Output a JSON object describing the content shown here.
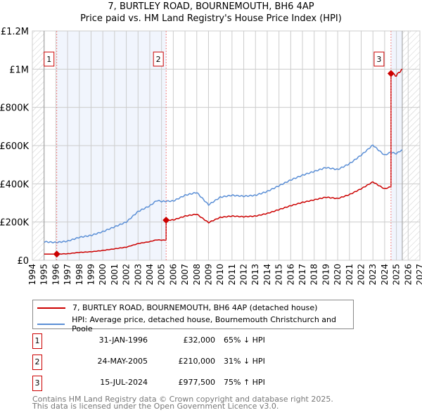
{
  "chart_data": {
    "type": "line",
    "title": "7, BURTLEY ROAD, BOURNEMOUTH, BH6 4AP",
    "subtitle": "Price paid vs. HM Land Registry's House Price Index (HPI)",
    "xlim": [
      1994,
      2027
    ],
    "ylim": [
      0,
      1200000
    ],
    "yticks": [
      {
        "v": 0,
        "label": "£0"
      },
      {
        "v": 200000,
        "label": "£200K"
      },
      {
        "v": 400000,
        "label": "£400K"
      },
      {
        "v": 600000,
        "label": "£600K"
      },
      {
        "v": 800000,
        "label": "£800K"
      },
      {
        "v": 1000000,
        "label": "£1M"
      },
      {
        "v": 1200000,
        "label": "£1.2M"
      }
    ],
    "xticks": [
      1994,
      1995,
      1996,
      1997,
      1998,
      1999,
      2000,
      2001,
      2002,
      2003,
      2004,
      2005,
      2006,
      2007,
      2008,
      2009,
      2010,
      2011,
      2012,
      2013,
      2014,
      2015,
      2016,
      2017,
      2018,
      2019,
      2020,
      2021,
      2022,
      2023,
      2024,
      2025,
      2026,
      2027
    ],
    "data_range": [
      1995,
      2025.5
    ],
    "hpi_series": {
      "name": "HPI: Average price, detached house, Bournemouth Christchurch and Poole",
      "color": "#5b8fd6",
      "x": [
        1995,
        1996,
        1997,
        1998,
        1999,
        2000,
        2001,
        2002,
        2003,
        2004,
        2004.6,
        2005,
        2006,
        2007,
        2008,
        2009,
        2010,
        2011,
        2012,
        2013,
        2014,
        2015,
        2016,
        2017,
        2018,
        2019,
        2020,
        2021,
        2022,
        2023,
        2023.5,
        2024,
        2024.5,
        2025,
        2025.4
      ],
      "y": [
        97000,
        93000,
        100000,
        120000,
        130000,
        150000,
        175000,
        200000,
        255000,
        285000,
        313000,
        308000,
        310000,
        340000,
        355000,
        290000,
        330000,
        340000,
        335000,
        340000,
        360000,
        390000,
        420000,
        445000,
        465000,
        485000,
        475000,
        505000,
        550000,
        603000,
        575000,
        550000,
        565000,
        558000,
        575000
      ]
    },
    "price_series": {
      "name": "7, BURTLEY ROAD, BOURNEMOUTH, BH6 4AP (detached house)",
      "color": "#cc0000"
    },
    "sales": [
      {
        "n": "1",
        "x": 1996.08,
        "date": "31-JAN-1996",
        "price": 32000,
        "price_label": "£32,000",
        "hpi": "65% ↓ HPI"
      },
      {
        "n": "2",
        "x": 2005.39,
        "date": "24-MAY-2005",
        "price": 210000,
        "price_label": "£210,000",
        "hpi": "31% ↓ HPI"
      },
      {
        "n": "3",
        "x": 2024.54,
        "date": "15-JUL-2024",
        "price": 977500,
        "price_label": "£977,500",
        "hpi": "75% ↑ HPI"
      }
    ]
  },
  "footer": {
    "line1": "Contains HM Land Registry data © Crown copyright and database right 2025.",
    "line2": "This data is licensed under the Open Government Licence v3.0."
  }
}
